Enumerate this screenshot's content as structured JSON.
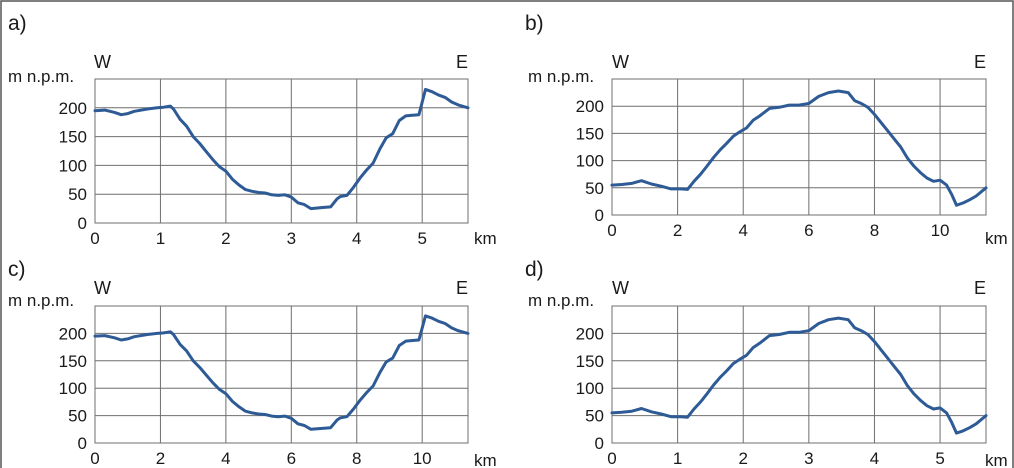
{
  "colors": {
    "line": "#2e5b95",
    "grid": "#6f6f6f",
    "text": "#1a1a1a"
  },
  "chart_data": [
    {
      "type": "line",
      "panel_label": "a)",
      "ylabel": "m n.p.m.",
      "xlabel": "km",
      "west_label": "W",
      "east_label": "E",
      "xlim": [
        0,
        5.7
      ],
      "ylim": [
        0,
        250
      ],
      "x_ticks": [
        0,
        1,
        2,
        3,
        4,
        5
      ],
      "y_ticks": [
        0,
        50,
        100,
        150,
        200
      ],
      "grid": true,
      "series": [
        {
          "x": [
            0,
            0.15,
            0.3,
            0.4,
            0.5,
            0.6,
            0.8,
            0.95,
            1.05,
            1.15,
            1.2,
            1.3,
            1.4,
            1.5,
            1.6,
            1.7,
            1.8,
            1.9,
            2.0,
            2.1,
            2.2,
            2.3,
            2.4,
            2.5,
            2.6,
            2.7,
            2.8,
            2.9,
            3.0,
            3.1,
            3.2,
            3.3,
            3.4,
            3.5,
            3.6,
            3.7,
            3.75,
            3.85,
            3.95,
            4.05,
            4.15,
            4.25,
            4.35,
            4.45,
            4.55,
            4.65,
            4.75,
            4.85,
            4.95,
            5.05,
            5.15,
            5.25,
            5.35,
            5.45,
            5.55,
            5.7
          ],
          "y": [
            195,
            196,
            192,
            188,
            190,
            194,
            198,
            200,
            201,
            203,
            198,
            180,
            168,
            150,
            138,
            124,
            110,
            98,
            90,
            76,
            66,
            58,
            55,
            53,
            52,
            49,
            48,
            49,
            45,
            35,
            32,
            25,
            26,
            27,
            28,
            42,
            46,
            48,
            62,
            78,
            92,
            104,
            128,
            148,
            155,
            178,
            186,
            187,
            188,
            232,
            228,
            222,
            218,
            210,
            205,
            200
          ]
        }
      ]
    },
    {
      "type": "line",
      "panel_label": "b)",
      "ylabel": "m n.p.m.",
      "xlabel": "km",
      "west_label": "W",
      "east_label": "E",
      "xlim": [
        0,
        11.4
      ],
      "ylim": [
        0,
        250
      ],
      "x_ticks": [
        0,
        2,
        4,
        6,
        8,
        10
      ],
      "y_ticks": [
        0,
        50,
        100,
        150,
        200
      ],
      "grid": true,
      "series": [
        {
          "x": [
            0,
            0.3,
            0.6,
            0.9,
            1.2,
            1.5,
            1.8,
            2.1,
            2.3,
            2.5,
            2.7,
            2.9,
            3.1,
            3.3,
            3.5,
            3.7,
            3.9,
            4.1,
            4.3,
            4.5,
            4.8,
            5.1,
            5.4,
            5.7,
            6.0,
            6.3,
            6.6,
            6.9,
            7.2,
            7.4,
            7.6,
            7.8,
            8.0,
            8.2,
            8.4,
            8.6,
            8.8,
            9.0,
            9.2,
            9.4,
            9.6,
            9.8,
            10.0,
            10.2,
            10.35,
            10.5,
            10.7,
            10.9,
            11.1,
            11.4
          ],
          "y": [
            55,
            56,
            58,
            63,
            57,
            53,
            48,
            48,
            47,
            62,
            75,
            90,
            106,
            120,
            132,
            145,
            153,
            160,
            174,
            182,
            196,
            198,
            202,
            202,
            205,
            218,
            225,
            228,
            225,
            210,
            205,
            198,
            185,
            170,
            155,
            140,
            125,
            105,
            90,
            78,
            68,
            62,
            64,
            55,
            38,
            18,
            22,
            28,
            35,
            50
          ]
        }
      ]
    },
    {
      "type": "line",
      "panel_label": "c)",
      "ylabel": "m n.p.m.",
      "xlabel": "km",
      "west_label": "W",
      "east_label": "E",
      "xlim": [
        0,
        11.4
      ],
      "ylim": [
        0,
        250
      ],
      "x_ticks": [
        0,
        2,
        4,
        6,
        8,
        10
      ],
      "y_ticks": [
        0,
        50,
        100,
        150,
        200
      ],
      "grid": true,
      "series": [
        {
          "x": [
            0,
            0.3,
            0.6,
            0.8,
            1.0,
            1.2,
            1.6,
            1.9,
            2.1,
            2.3,
            2.4,
            2.6,
            2.8,
            3.0,
            3.2,
            3.4,
            3.6,
            3.8,
            4.0,
            4.2,
            4.4,
            4.6,
            4.8,
            5.0,
            5.2,
            5.4,
            5.6,
            5.8,
            6.0,
            6.2,
            6.4,
            6.6,
            6.8,
            7.0,
            7.2,
            7.4,
            7.5,
            7.7,
            7.9,
            8.1,
            8.3,
            8.5,
            8.7,
            8.9,
            9.1,
            9.3,
            9.5,
            9.7,
            9.9,
            10.1,
            10.3,
            10.5,
            10.7,
            10.9,
            11.1,
            11.4
          ],
          "y": [
            195,
            196,
            192,
            188,
            190,
            194,
            198,
            200,
            201,
            203,
            198,
            180,
            168,
            150,
            138,
            124,
            110,
            98,
            90,
            76,
            66,
            58,
            55,
            53,
            52,
            49,
            48,
            49,
            45,
            35,
            32,
            25,
            26,
            27,
            28,
            42,
            46,
            48,
            62,
            78,
            92,
            104,
            128,
            148,
            155,
            178,
            186,
            187,
            188,
            232,
            228,
            222,
            218,
            210,
            205,
            200
          ]
        }
      ]
    },
    {
      "type": "line",
      "panel_label": "d)",
      "ylabel": "m n.p.m.",
      "xlabel": "km",
      "west_label": "W",
      "east_label": "E",
      "xlim": [
        0,
        5.7
      ],
      "ylim": [
        0,
        250
      ],
      "x_ticks": [
        0,
        1,
        2,
        3,
        4,
        5
      ],
      "y_ticks": [
        0,
        50,
        100,
        150,
        200
      ],
      "grid": true,
      "series": [
        {
          "x": [
            0,
            0.15,
            0.3,
            0.45,
            0.6,
            0.75,
            0.9,
            1.05,
            1.15,
            1.25,
            1.35,
            1.45,
            1.55,
            1.65,
            1.75,
            1.85,
            1.95,
            2.05,
            2.15,
            2.25,
            2.4,
            2.55,
            2.7,
            2.85,
            3.0,
            3.15,
            3.3,
            3.45,
            3.6,
            3.7,
            3.8,
            3.9,
            4.0,
            4.1,
            4.2,
            4.3,
            4.4,
            4.5,
            4.6,
            4.7,
            4.8,
            4.9,
            5.0,
            5.1,
            5.175,
            5.25,
            5.35,
            5.45,
            5.55,
            5.7
          ],
          "y": [
            55,
            56,
            58,
            63,
            57,
            53,
            48,
            48,
            47,
            62,
            75,
            90,
            106,
            120,
            132,
            145,
            153,
            160,
            174,
            182,
            196,
            198,
            202,
            202,
            205,
            218,
            225,
            228,
            225,
            210,
            205,
            198,
            185,
            170,
            155,
            140,
            125,
            105,
            90,
            78,
            68,
            62,
            64,
            55,
            38,
            18,
            22,
            28,
            35,
            50
          ]
        }
      ]
    }
  ]
}
